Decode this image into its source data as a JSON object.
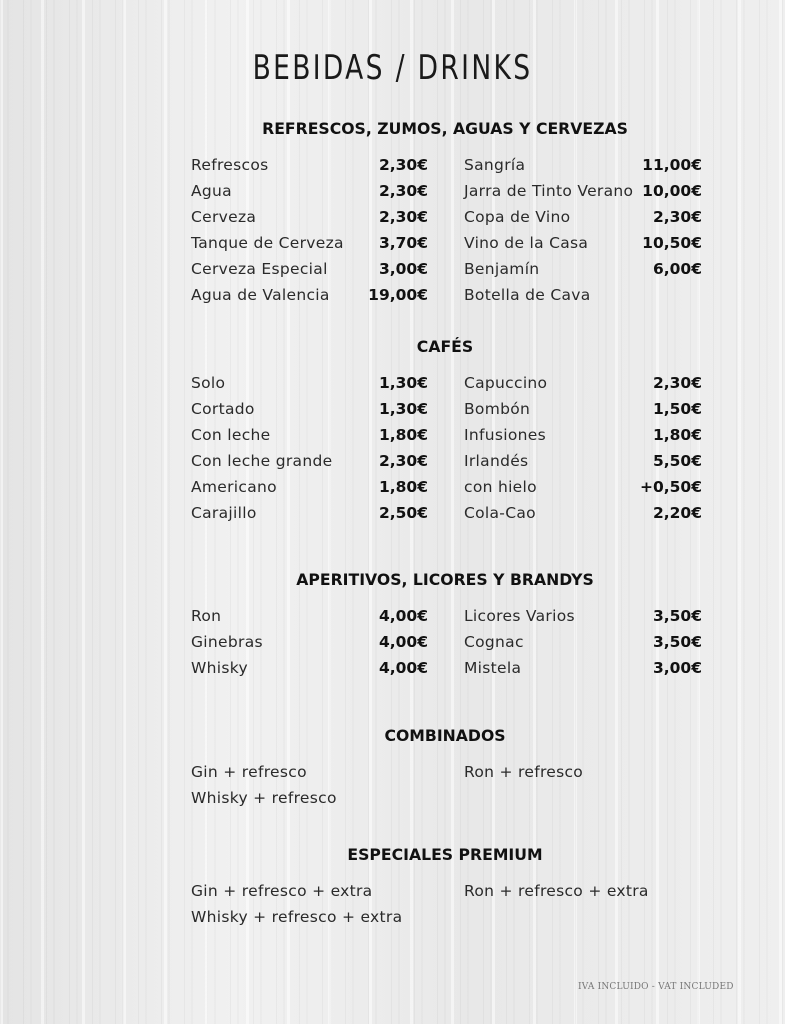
{
  "title": "BEBIDAS / DRINKS",
  "sections": [
    {
      "heading": "REFRESCOS, ZUMOS, AGUAS Y CERVEZAS",
      "left": [
        {
          "name": "Refrescos",
          "price": "2,30€"
        },
        {
          "name": "Agua",
          "price": "2,30€"
        },
        {
          "name": "Cerveza",
          "price": "2,30€"
        },
        {
          "name": "Tanque de Cerveza",
          "price": "3,70€"
        },
        {
          "name": "Cerveza Especial",
          "price": "3,00€"
        },
        {
          "name": "Agua de Valencia",
          "price": "19,00€"
        }
      ],
      "right": [
        {
          "name": "Sangría",
          "price": "11,00€"
        },
        {
          "name": "Jarra de Tinto Verano",
          "price": "10,00€"
        },
        {
          "name": "Copa de Vino",
          "price": "2,30€"
        },
        {
          "name": "Vino de la Casa",
          "price": "10,50€"
        },
        {
          "name": "Benjamín",
          "price": "6,00€"
        },
        {
          "name": "Botella de Cava",
          "price": ""
        }
      ]
    },
    {
      "heading": "CAFÉS",
      "left": [
        {
          "name": "Solo",
          "price": "1,30€"
        },
        {
          "name": "Cortado",
          "price": "1,30€"
        },
        {
          "name": "Con leche",
          "price": "1,80€"
        },
        {
          "name": "Con leche grande",
          "price": "2,30€"
        },
        {
          "name": "Americano",
          "price": "1,80€"
        },
        {
          "name": "Carajillo",
          "price": "2,50€"
        }
      ],
      "right": [
        {
          "name": "Capuccino",
          "price": "2,30€"
        },
        {
          "name": "Bombón",
          "price": "1,50€"
        },
        {
          "name": "Infusiones",
          "price": "1,80€"
        },
        {
          "name": "Irlandés",
          "price": "5,50€"
        },
        {
          "name": "con hielo",
          "price": "+0,50€"
        },
        {
          "name": "Cola-Cao",
          "price": "2,20€"
        }
      ]
    },
    {
      "heading": "APERITIVOS, LICORES Y BRANDYS",
      "left": [
        {
          "name": "Ron",
          "price": "4,00€"
        },
        {
          "name": "Ginebras",
          "price": "4,00€"
        },
        {
          "name": "Whisky",
          "price": "4,00€"
        }
      ],
      "right": [
        {
          "name": "Licores Varios",
          "price": "3,50€"
        },
        {
          "name": "Cognac",
          "price": "3,50€"
        },
        {
          "name": "Mistela",
          "price": "3,00€"
        }
      ]
    },
    {
      "heading": "COMBINADOS",
      "left": [
        {
          "name": "Gin + refresco",
          "price": ""
        },
        {
          "name": "Whisky + refresco",
          "price": ""
        }
      ],
      "right": [
        {
          "name": "Ron + refresco",
          "price": ""
        }
      ]
    },
    {
      "heading": "ESPECIALES PREMIUM",
      "left": [
        {
          "name": "Gin + refresco + extra",
          "price": ""
        },
        {
          "name": "Whisky + refresco + extra",
          "price": ""
        }
      ],
      "right": [
        {
          "name": "Ron + refresco + extra",
          "price": ""
        }
      ]
    }
  ],
  "footer": "IVA INCLUIDO  -  VAT INCLUDED"
}
